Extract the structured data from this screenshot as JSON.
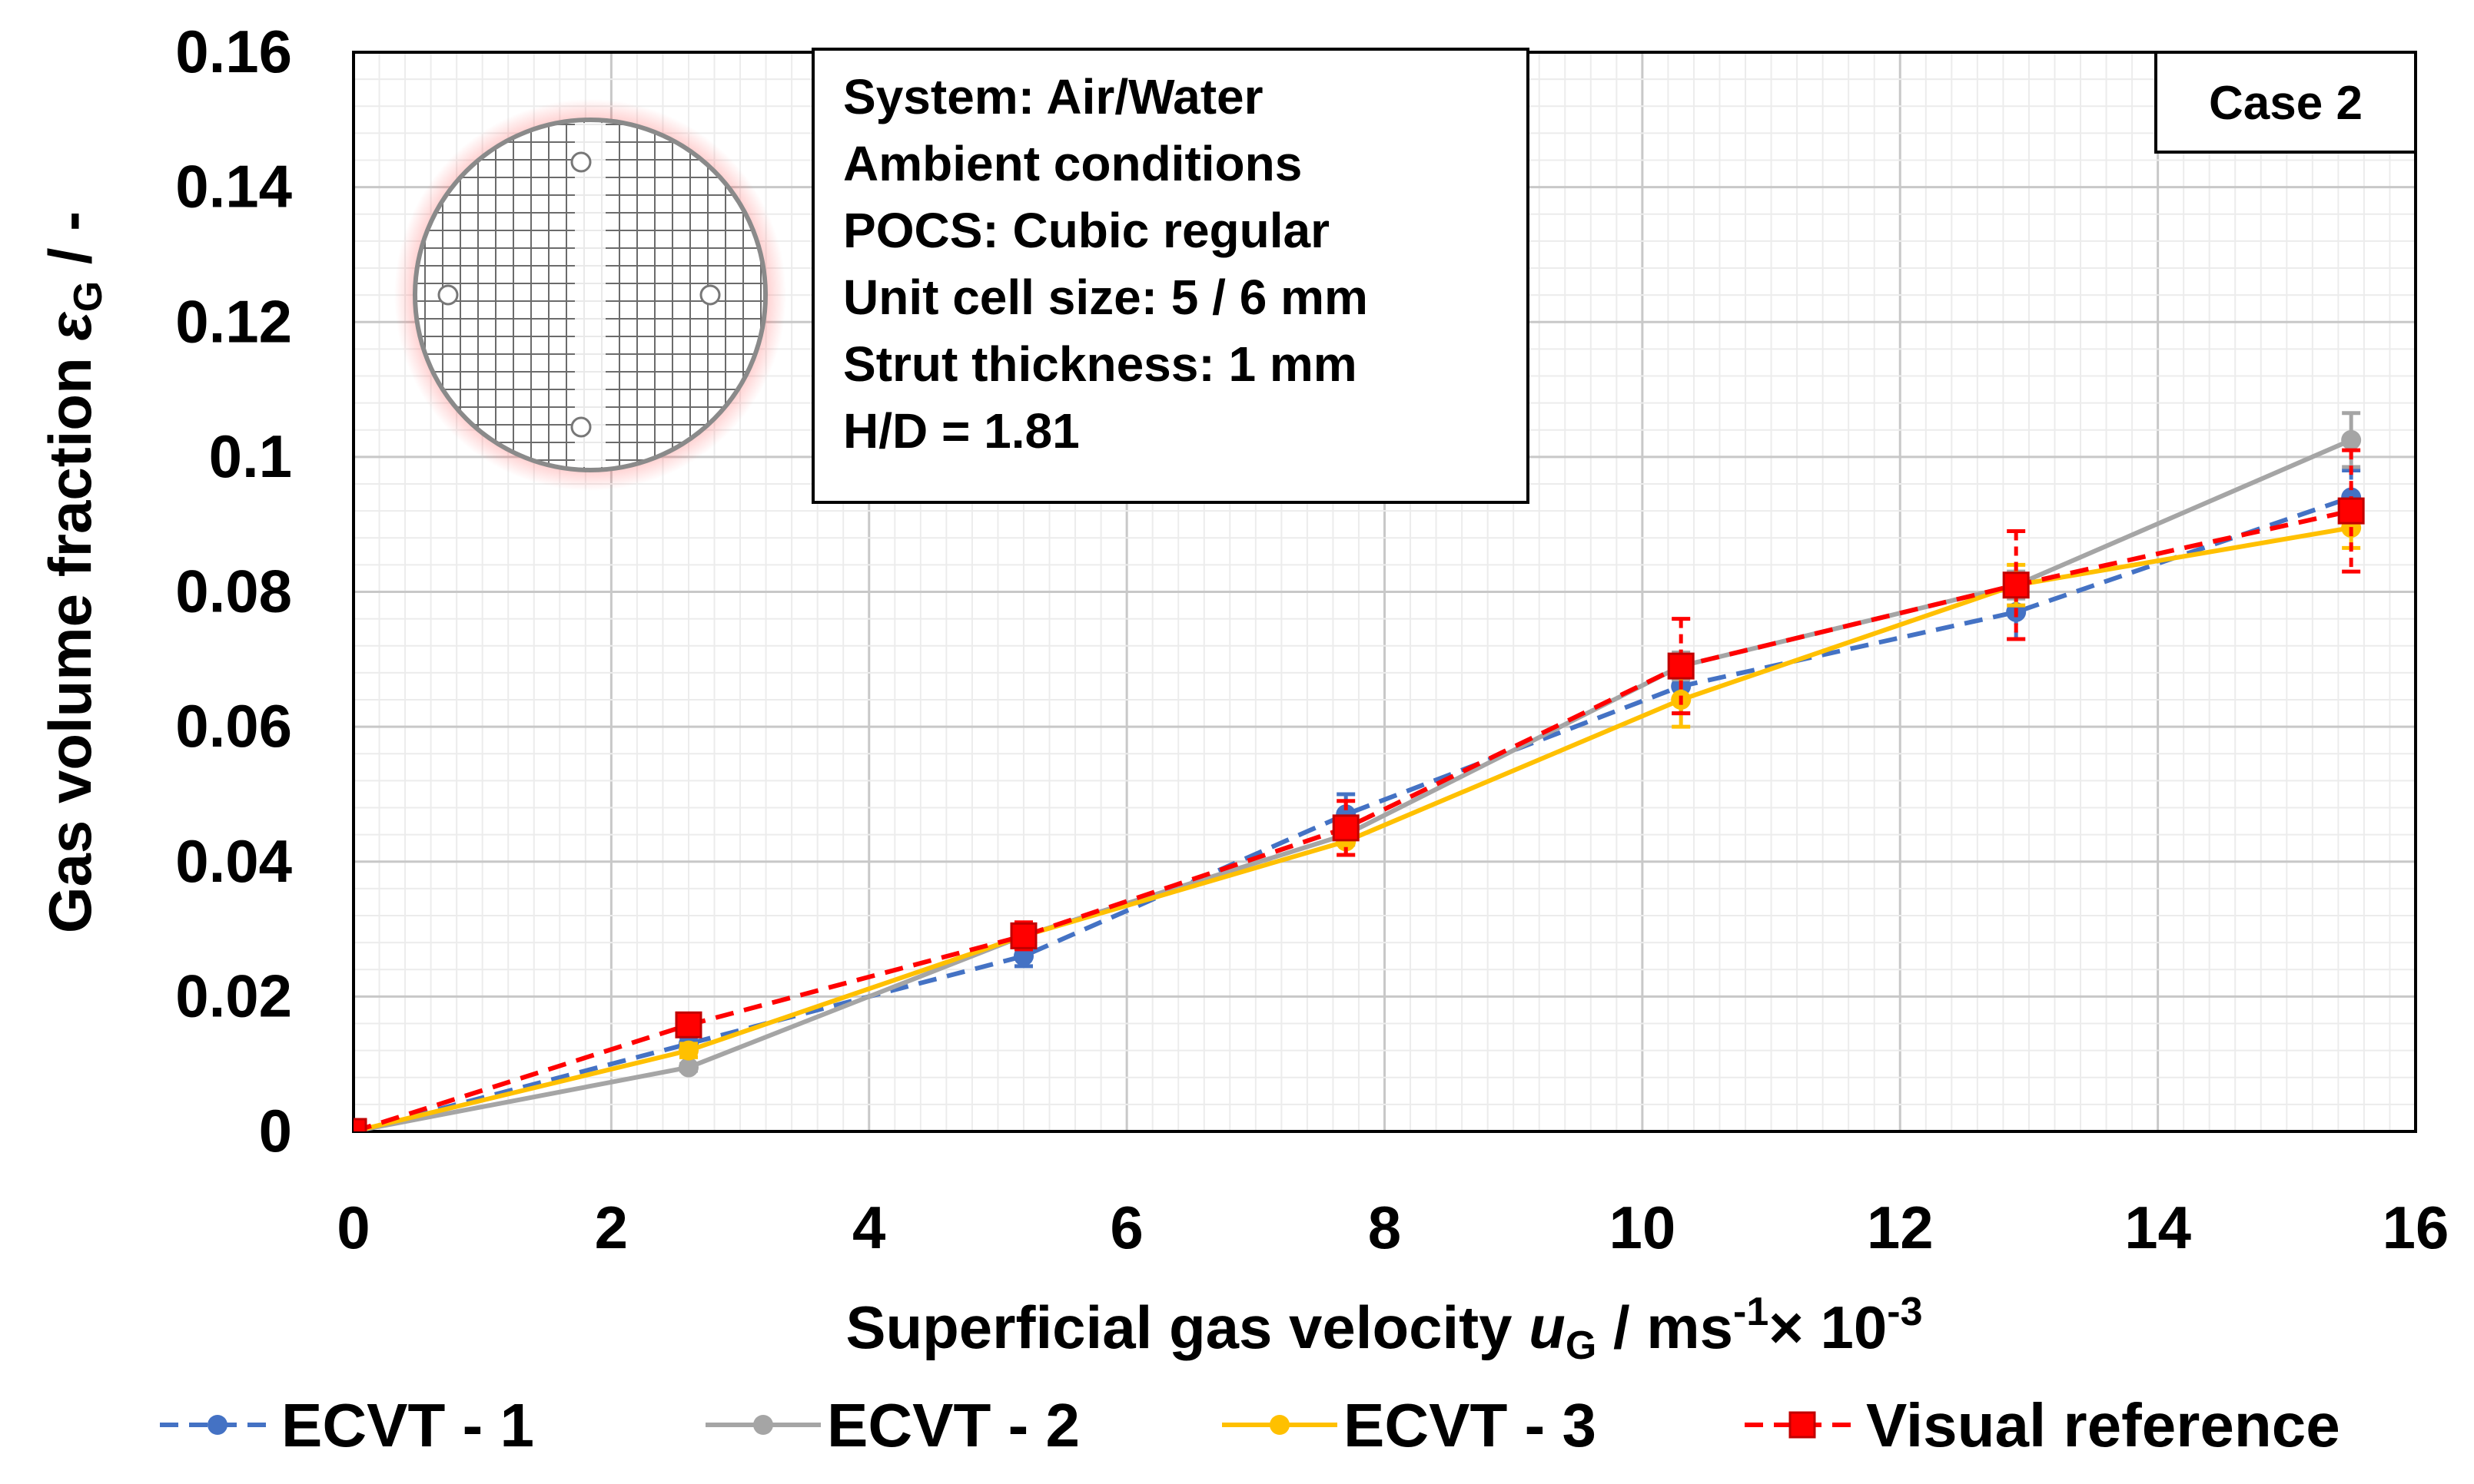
{
  "chart_data": {
    "type": "line",
    "title": "",
    "xlabel_main": "Superficial gas velocity ",
    "xlabel_var": "u",
    "xlabel_sub": "G",
    "xlabel_unit": " / ms",
    "xlabel_sup1": "-1",
    "xlabel_times": "× 10",
    "xlabel_sup2": "-3",
    "ylabel_main": "Gas volume fraction ",
    "ylabel_var": "ε",
    "ylabel_sub": "G",
    "ylabel_unit": " / -",
    "xlim": [
      0,
      16
    ],
    "ylim": [
      0,
      0.16
    ],
    "xticks": [
      "0",
      "2",
      "4",
      "6",
      "8",
      "10",
      "12",
      "14",
      "16"
    ],
    "yticks": [
      "0",
      "0.02",
      "0.04",
      "0.06",
      "0.08",
      "0.1",
      "0.12",
      "0.14",
      "0.16"
    ],
    "grid": true,
    "legend_position": "bottom",
    "series": [
      {
        "name": "ECVT - 1",
        "color": "#4472C4",
        "dash": "dashed",
        "marker": "circle",
        "x": [
          0,
          2.6,
          5.2,
          7.7,
          10.3,
          12.9,
          15.5
        ],
        "y": [
          0,
          0.013,
          0.026,
          0.047,
          0.066,
          0.077,
          0.094
        ],
        "err": [
          0,
          0.001,
          0.0015,
          0.003,
          0.004,
          0.004,
          0.004
        ]
      },
      {
        "name": "ECVT - 2",
        "color": "#A5A5A5",
        "dash": "solid",
        "marker": "circle",
        "x": [
          0,
          2.6,
          5.2,
          7.7,
          10.3,
          12.9,
          15.5
        ],
        "y": [
          0,
          0.0095,
          0.029,
          0.044,
          0.069,
          0.081,
          0.1025
        ],
        "err": [
          0,
          0.0005,
          0.001,
          0.0015,
          0.002,
          0.002,
          0.004
        ]
      },
      {
        "name": "ECVT - 3",
        "color": "#FFC000",
        "dash": "solid",
        "marker": "circle",
        "x": [
          0,
          2.6,
          5.2,
          7.7,
          10.3,
          12.9,
          15.5
        ],
        "y": [
          0,
          0.012,
          0.029,
          0.043,
          0.064,
          0.081,
          0.0895
        ],
        "err": [
          0,
          0.001,
          0.0015,
          0.002,
          0.004,
          0.003,
          0.003
        ]
      },
      {
        "name": "Visual reference",
        "color": "#FF0000",
        "dash": "dashed",
        "marker": "square",
        "x": [
          0,
          2.6,
          5.2,
          7.7,
          10.3,
          12.9,
          15.5
        ],
        "y": [
          0,
          0.0158,
          0.029,
          0.045,
          0.069,
          0.081,
          0.092
        ],
        "err": [
          0,
          0.001,
          0.002,
          0.004,
          0.007,
          0.008,
          0.009
        ]
      }
    ],
    "info_box": [
      "System: Air/Water",
      "Ambient conditions",
      "POCS: Cubic regular",
      "Unit cell size: 5 / 6 mm",
      "Strut thickness: 1 mm",
      "H/D = 1.81"
    ],
    "case_label": "Case 2"
  }
}
